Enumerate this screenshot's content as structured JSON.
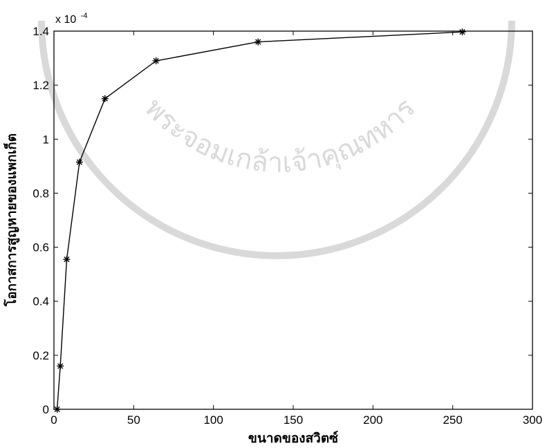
{
  "chart_data": {
    "type": "line",
    "title": "",
    "xlabel": "ขนาดของสวิตซ์",
    "ylabel": "โอกาสการสูญหายของแพกเก็ต",
    "y_exponent_label": "x 10",
    "y_exponent_power": "-4",
    "xlim": [
      0,
      300
    ],
    "ylim": [
      0,
      1.4
    ],
    "x_ticks": [
      0,
      50,
      100,
      150,
      200,
      250,
      300
    ],
    "x_tick_labels": [
      "0",
      "50",
      "100",
      "150",
      "200",
      "250",
      "300"
    ],
    "y_ticks": [
      0,
      0.2,
      0.4,
      0.6,
      0.8,
      1.0,
      1.2,
      1.4
    ],
    "y_tick_labels": [
      "0",
      "0.2",
      "0.4",
      "0.6",
      "0.8",
      "1",
      "1.2",
      "1.4"
    ],
    "grid": false,
    "marker": "asterisk",
    "series": [
      {
        "x": [
          2,
          4,
          8,
          16,
          32,
          64,
          128,
          256
        ],
        "y": [
          0.0,
          0.16,
          0.555,
          0.915,
          1.15,
          1.29,
          1.36,
          1.397
        ]
      }
    ]
  },
  "colors": {
    "line": "#000000",
    "axes": "#000000",
    "background": "#ffffff",
    "watermark": "#d9d9d9"
  },
  "watermark": {
    "text": "พระจอมเกล้าเจ้าคุณทหาร"
  }
}
